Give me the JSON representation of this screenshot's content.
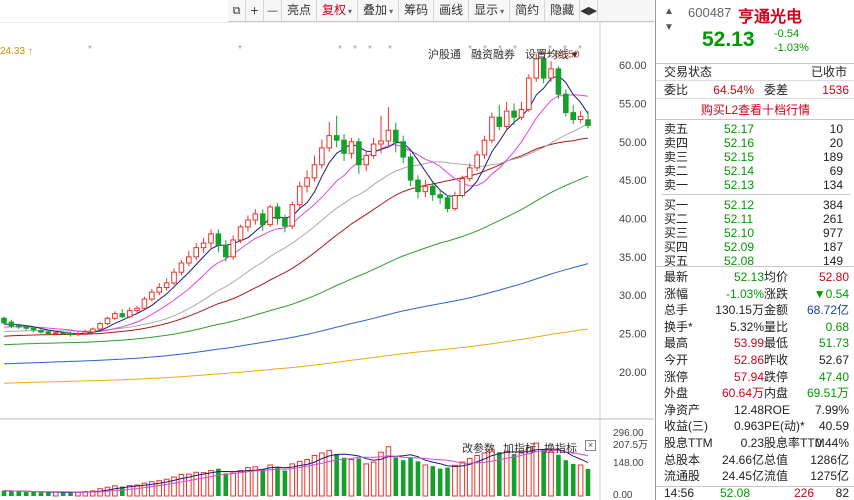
{
  "toolbar": {
    "items": [
      {
        "label": "⧉",
        "icon": "window-icon"
      },
      {
        "label": "+",
        "icon": "zoom-in-icon"
      },
      {
        "label": "—",
        "icon": "zoom-out-icon"
      },
      {
        "label": "亮点"
      },
      {
        "label": "复权",
        "active": true,
        "dropdown": true
      },
      {
        "label": "叠加",
        "dropdown": true
      },
      {
        "label": "筹码"
      },
      {
        "label": "画线"
      },
      {
        "label": "显示",
        "dropdown": true
      },
      {
        "label": "简约"
      },
      {
        "label": "隐藏"
      },
      {
        "label": "◀▶",
        "icon": "scroll-arrows-icon"
      }
    ]
  },
  "chart": {
    "price_top": "24.33 ↑",
    "top_links": [
      "沪股通",
      "融资融券",
      "设置均线 ▾"
    ],
    "vol_links": [
      "改参数",
      "加指标",
      "换指标"
    ],
    "vol_close": "×",
    "high_label": "61.50",
    "y_axis_labels": [
      "60.00",
      "55.00",
      "50.00",
      "45.00",
      "40.00",
      "35.00",
      "30.00",
      "25.00",
      "20.00"
    ],
    "vol_axis_labels": [
      "296.00",
      "207.5万",
      "148.00",
      "0.00"
    ]
  },
  "chart_data": {
    "type": "candlestick",
    "price_axis": {
      "ylim": [
        14,
        63
      ],
      "ticks": [
        60,
        55,
        50,
        45,
        40,
        35,
        30,
        25,
        20
      ]
    },
    "volume_axis": {
      "ylim": [
        0,
        296
      ],
      "ticks": [
        296,
        148,
        0
      ],
      "mark": "207.5万"
    },
    "annotation": {
      "label": "61.50",
      "value": 61.5
    },
    "candles": [
      [
        27.0,
        26.4,
        27.2,
        26.2
      ],
      [
        26.5,
        26.0,
        26.8,
        25.7
      ],
      [
        26.0,
        25.9,
        26.3,
        25.6
      ],
      [
        25.9,
        25.7,
        26.1,
        25.4
      ],
      [
        25.7,
        25.5,
        26.0,
        25.2
      ],
      [
        25.4,
        25.2,
        25.7,
        25.0
      ],
      [
        25.2,
        25.0,
        25.5,
        24.8
      ],
      [
        25.0,
        25.1,
        25.4,
        24.8
      ],
      [
        25.1,
        25.0,
        25.3,
        24.8
      ],
      [
        25.0,
        24.9,
        25.2,
        24.6
      ],
      [
        24.9,
        25.0,
        25.3,
        24.7
      ],
      [
        25.0,
        25.2,
        25.5,
        24.9
      ],
      [
        25.2,
        25.6,
        25.8,
        25.0
      ],
      [
        25.6,
        26.3,
        26.5,
        25.5
      ],
      [
        26.3,
        27.0,
        27.2,
        26.1
      ],
      [
        27.0,
        27.6,
        27.9,
        26.8
      ],
      [
        27.6,
        27.2,
        28.2,
        27.0
      ],
      [
        27.2,
        28.0,
        28.4,
        27.0
      ],
      [
        28.0,
        28.3,
        28.6,
        27.6
      ],
      [
        28.3,
        29.5,
        29.8,
        28.1
      ],
      [
        29.5,
        30.4,
        30.8,
        29.2
      ],
      [
        30.4,
        31.0,
        31.6,
        30.0
      ],
      [
        31.0,
        31.6,
        32.2,
        30.6
      ],
      [
        31.6,
        33.0,
        33.5,
        31.3
      ],
      [
        33.0,
        34.2,
        34.6,
        32.6
      ],
      [
        34.2,
        35.0,
        35.8,
        33.8
      ],
      [
        35.0,
        36.2,
        36.8,
        34.6
      ],
      [
        36.2,
        36.8,
        37.5,
        35.5
      ],
      [
        36.8,
        38.0,
        38.6,
        36.0
      ],
      [
        38.0,
        36.5,
        38.6,
        35.6
      ],
      [
        36.5,
        35.0,
        37.2,
        34.4
      ],
      [
        35.0,
        37.2,
        37.8,
        34.6
      ],
      [
        37.2,
        38.9,
        39.2,
        36.8
      ],
      [
        38.9,
        39.8,
        40.4,
        38.3
      ],
      [
        39.8,
        40.6,
        41.2,
        39.2
      ],
      [
        40.6,
        39.2,
        41.2,
        38.4
      ],
      [
        39.2,
        41.5,
        41.8,
        38.9
      ],
      [
        41.5,
        40.0,
        42.0,
        39.2
      ],
      [
        40.0,
        39.0,
        40.5,
        38.2
      ],
      [
        39.0,
        41.8,
        42.2,
        38.6
      ],
      [
        41.8,
        44.2,
        44.8,
        41.4
      ],
      [
        44.2,
        45.3,
        46.3,
        43.4
      ],
      [
        45.3,
        47.0,
        48.2,
        44.8
      ],
      [
        47.0,
        49.2,
        50.3,
        46.5
      ],
      [
        49.2,
        50.8,
        52.6,
        48.7
      ],
      [
        50.8,
        50.2,
        53.4,
        49.3
      ],
      [
        50.2,
        48.5,
        51.0,
        47.5
      ],
      [
        48.5,
        50.0,
        50.5,
        47.8
      ],
      [
        50.0,
        47.0,
        50.5,
        45.8
      ],
      [
        47.0,
        48.2,
        48.8,
        46.2
      ],
      [
        48.2,
        49.7,
        50.5,
        47.8
      ],
      [
        49.7,
        50.1,
        53.4,
        48.5
      ],
      [
        50.1,
        51.5,
        54.5,
        49.5
      ],
      [
        51.5,
        50.0,
        52.5,
        48.6
      ],
      [
        50.0,
        48.0,
        50.8,
        47.2
      ],
      [
        48.0,
        45.0,
        48.5,
        44.2
      ],
      [
        45.0,
        43.5,
        45.6,
        42.6
      ],
      [
        43.5,
        44.2,
        45.0,
        42.8
      ],
      [
        44.2,
        43.1,
        44.8,
        42.3
      ],
      [
        43.1,
        42.7,
        43.8,
        41.9
      ],
      [
        42.7,
        41.3,
        43.0,
        40.8
      ],
      [
        41.3,
        43.0,
        43.5,
        41.0
      ],
      [
        43.0,
        45.2,
        45.6,
        42.7
      ],
      [
        45.2,
        46.6,
        47.2,
        44.8
      ],
      [
        46.6,
        48.3,
        48.8,
        46.2
      ],
      [
        48.3,
        50.2,
        50.8,
        47.8
      ],
      [
        50.2,
        53.2,
        53.8,
        49.8
      ],
      [
        53.2,
        52.0,
        54.8,
        51.5
      ],
      [
        52.0,
        54.0,
        55.2,
        51.6
      ],
      [
        54.0,
        53.2,
        55.0,
        52.2
      ],
      [
        53.2,
        54.2,
        55.2,
        52.8
      ],
      [
        54.2,
        58.3,
        58.8,
        53.9
      ],
      [
        58.3,
        60.8,
        61.5,
        57.8
      ],
      [
        60.8,
        58.3,
        61.0,
        57.6
      ],
      [
        58.3,
        59.5,
        60.5,
        57.8
      ],
      [
        59.5,
        56.2,
        59.8,
        55.6
      ],
      [
        56.2,
        53.8,
        56.8,
        53.3
      ],
      [
        53.8,
        52.9,
        54.8,
        52.3
      ],
      [
        52.9,
        53.3,
        54.0,
        52.4
      ],
      [
        52.86,
        52.13,
        53.99,
        51.73
      ]
    ],
    "volume": [
      30,
      26,
      24,
      22,
      22,
      20,
      20,
      22,
      20,
      18,
      22,
      24,
      28,
      40,
      48,
      56,
      52,
      58,
      60,
      70,
      78,
      84,
      92,
      104,
      118,
      120,
      130,
      128,
      140,
      150,
      124,
      126,
      140,
      156,
      160,
      146,
      170,
      160,
      140,
      176,
      190,
      200,
      222,
      236,
      250,
      230,
      210,
      200,
      206,
      176,
      186,
      240,
      270,
      212,
      196,
      210,
      190,
      170,
      164,
      150,
      156,
      168,
      186,
      206,
      222,
      236,
      256,
      240,
      246,
      230,
      236,
      266,
      290,
      256,
      240,
      226,
      196,
      176,
      170,
      148
    ]
  },
  "quote": {
    "code": "600487",
    "name": "亨通光电",
    "price": "52.13",
    "change": "-0.54",
    "pct": "-1.03%",
    "status_label": "交易状态",
    "status_value": "已收市",
    "ratio_label": "委比",
    "ratio_value": "64.54%",
    "diff_label": "委差",
    "diff_value": "1536",
    "l2_link": "购买L2查看十档行情",
    "asks": [
      {
        "name": "卖五",
        "price": "52.17",
        "vol": "10"
      },
      {
        "name": "卖四",
        "price": "52.16",
        "vol": "20"
      },
      {
        "name": "卖三",
        "price": "52.15",
        "vol": "189"
      },
      {
        "name": "卖二",
        "price": "52.14",
        "vol": "69"
      },
      {
        "name": "卖一",
        "price": "52.13",
        "vol": "134"
      }
    ],
    "bids": [
      {
        "name": "买一",
        "price": "52.12",
        "vol": "384"
      },
      {
        "name": "买二",
        "price": "52.11",
        "vol": "261"
      },
      {
        "name": "买三",
        "price": "52.10",
        "vol": "977"
      },
      {
        "name": "买四",
        "price": "52.09",
        "vol": "187"
      },
      {
        "name": "买五",
        "price": "52.08",
        "vol": "149"
      }
    ],
    "stats": [
      {
        "l1": "最新",
        "v1": "52.13",
        "c1": "green",
        "l2": "均价",
        "v2": "52.80",
        "c2": "red"
      },
      {
        "l1": "涨幅",
        "v1": "-1.03%",
        "c1": "green",
        "l2": "涨跌",
        "v2": "▼0.54",
        "c2": "green"
      },
      {
        "l1": "总手",
        "v1": "130.15万",
        "c1": "",
        "l2": "金额",
        "v2": "68.72亿",
        "c2": "blue"
      },
      {
        "l1": "换手*",
        "v1": "5.32%",
        "c1": "",
        "l2": "量比",
        "v2": "0.68",
        "c2": "green"
      },
      {
        "l1": "最高",
        "v1": "53.99",
        "c1": "red",
        "l2": "最低",
        "v2": "51.73",
        "c2": "green"
      },
      {
        "l1": "今开",
        "v1": "52.86",
        "c1": "red",
        "l2": "昨收",
        "v2": "52.67",
        "c2": ""
      },
      {
        "l1": "涨停",
        "v1": "57.94",
        "c1": "red",
        "l2": "跌停",
        "v2": "47.40",
        "c2": "green"
      },
      {
        "l1": "外盘",
        "v1": "60.64万",
        "c1": "red",
        "l2": "内盘",
        "v2": "69.51万",
        "c2": "green"
      },
      {
        "l1": "净资产",
        "v1": "12.48",
        "c1": "",
        "l2": "ROE",
        "v2": "7.99%",
        "c2": ""
      },
      {
        "l1": "收益(三)",
        "v1": "0.963",
        "c1": "",
        "l2": "PE(动)*",
        "v2": "40.59",
        "c2": ""
      },
      {
        "l1": "股息TTM",
        "v1": "0.23",
        "c1": "",
        "l2": "股息率TTM",
        "v2": "0.44%",
        "c2": ""
      },
      {
        "l1": "总股本",
        "v1": "24.66亿",
        "c1": "",
        "l2": "总值",
        "v2": "1286亿",
        "c2": ""
      },
      {
        "l1": "流通股",
        "v1": "24.45亿",
        "c1": "",
        "l2": "流值",
        "v2": "1275亿",
        "c2": ""
      }
    ],
    "bottom": {
      "time": "14:56",
      "price": "52.08",
      "vol": "226",
      "num": "82"
    }
  },
  "colors": {
    "up": "#e8342a",
    "down": "#14a02a",
    "ma5": "#1a1a80",
    "ma10": "#e046e0",
    "ma20": "#aaaaaa",
    "ma30": "#b01818",
    "ma60": "#2e9e2e",
    "ma120": "#2d63d0",
    "ma250": "#f0a818"
  }
}
